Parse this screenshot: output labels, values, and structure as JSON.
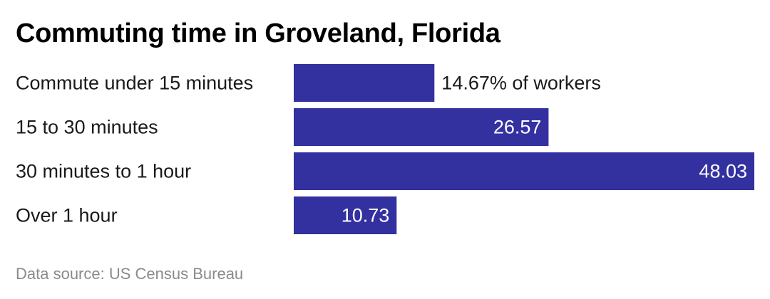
{
  "title": "Commuting time in Groveland, Florida",
  "source": "Data source: US Census Bureau",
  "colors": {
    "bar": "#3330a0",
    "label_inside": "#ffffff",
    "label_outside": "#1a1a1a",
    "category_text": "#1a1a1a",
    "source_text": "#8a8a8a"
  },
  "chart_data": {
    "type": "bar",
    "orientation": "horizontal",
    "title": "Commuting time in Groveland, Florida",
    "xlabel": "",
    "ylabel": "",
    "categories": [
      "Commute under 15 minutes",
      "15 to 30 minutes",
      "30 minutes to 1 hour",
      "Over 1 hour"
    ],
    "values": [
      14.67,
      26.57,
      48.03,
      10.73
    ],
    "value_labels": [
      "14.67% of workers",
      "26.57",
      "48.03",
      "10.73"
    ],
    "unit": "% of workers",
    "xlim": [
      0,
      48.03
    ],
    "grid": false,
    "legend": "none"
  }
}
